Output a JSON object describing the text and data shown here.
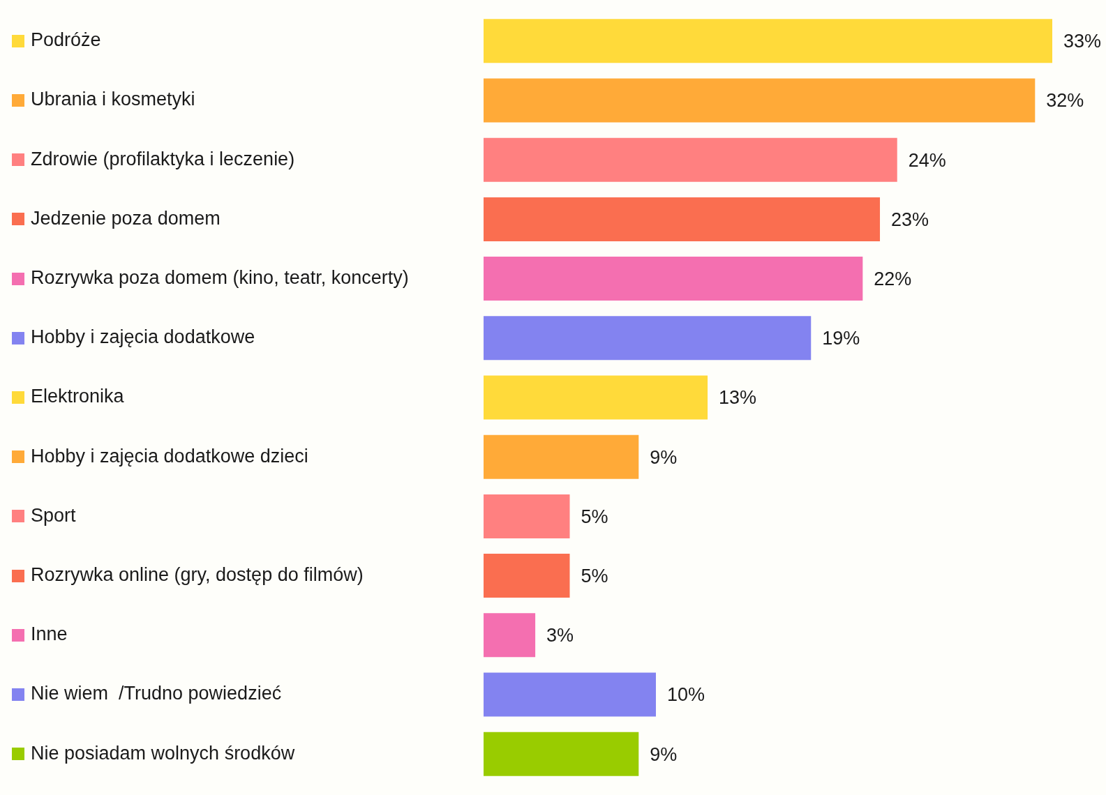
{
  "chart_data": {
    "type": "bar",
    "orientation": "horizontal",
    "categories": [
      "Podróże",
      "Ubrania i kosmetyki",
      "Zdrowie (profilaktyka i leczenie)",
      "Jedzenie poza domem",
      "Rozrywka poza domem (kino, teatr, koncerty)",
      "Hobby i zajęcia dodatkowe",
      "Elektronika",
      "Hobby i zajęcia dodatkowe dzieci",
      "Sport",
      "Rozrywka online (gry, dostęp do filmów)",
      "Inne",
      "Nie wiem  /Trudno powiedzieć",
      "Nie posiadam wolnych środków"
    ],
    "values": [
      33,
      32,
      24,
      23,
      22,
      19,
      13,
      9,
      5,
      5,
      3,
      10,
      9
    ],
    "colors": [
      "#ffda3a",
      "#ffaa38",
      "#ff8080",
      "#fa6e50",
      "#f46fb0",
      "#8383f0",
      "#ffda3a",
      "#ffaa38",
      "#ff8080",
      "#fa6e50",
      "#f46fb0",
      "#8383f0",
      "#99cc00"
    ],
    "value_labels": [
      "33%",
      "32%",
      "24%",
      "23%",
      "22%",
      "19%",
      "13%",
      "9%",
      "5%",
      "5%",
      "3%",
      "10%",
      "9%"
    ]
  }
}
